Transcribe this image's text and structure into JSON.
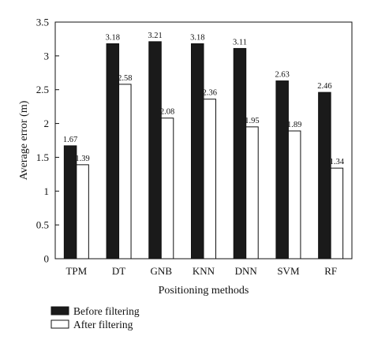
{
  "chart_data": {
    "type": "bar",
    "title": "",
    "xlabel": "Positioning methods",
    "ylabel": "Average error (m)",
    "ylim": [
      0,
      3.5
    ],
    "yticks": [
      "0",
      "0.5",
      "1",
      "1.5",
      "2",
      "2.5",
      "3",
      "3.5"
    ],
    "ytick_values": [
      0,
      0.5,
      1,
      1.5,
      2,
      2.5,
      3,
      3.5
    ],
    "categories": [
      "TPM",
      "DT",
      "GNB",
      "KNN",
      "DNN",
      "SVM",
      "RF"
    ],
    "series": [
      {
        "name": "Before filtering",
        "color": "#1a1a1a",
        "values": [
          1.67,
          3.18,
          3.21,
          3.18,
          3.11,
          2.63,
          2.46
        ],
        "labels": [
          "1.67",
          "3.18",
          "3.21",
          "3.18",
          "3.11",
          "2.63",
          "2.46"
        ]
      },
      {
        "name": "After filtering",
        "color": "#ffffff",
        "values": [
          1.39,
          2.58,
          2.08,
          2.36,
          1.95,
          1.89,
          1.34
        ],
        "labels": [
          "1.39",
          "2.58",
          "2.08",
          "2.36",
          "1.95",
          "1.89",
          "1.34"
        ]
      }
    ],
    "legend_position": "bottom-left",
    "grid": false
  }
}
